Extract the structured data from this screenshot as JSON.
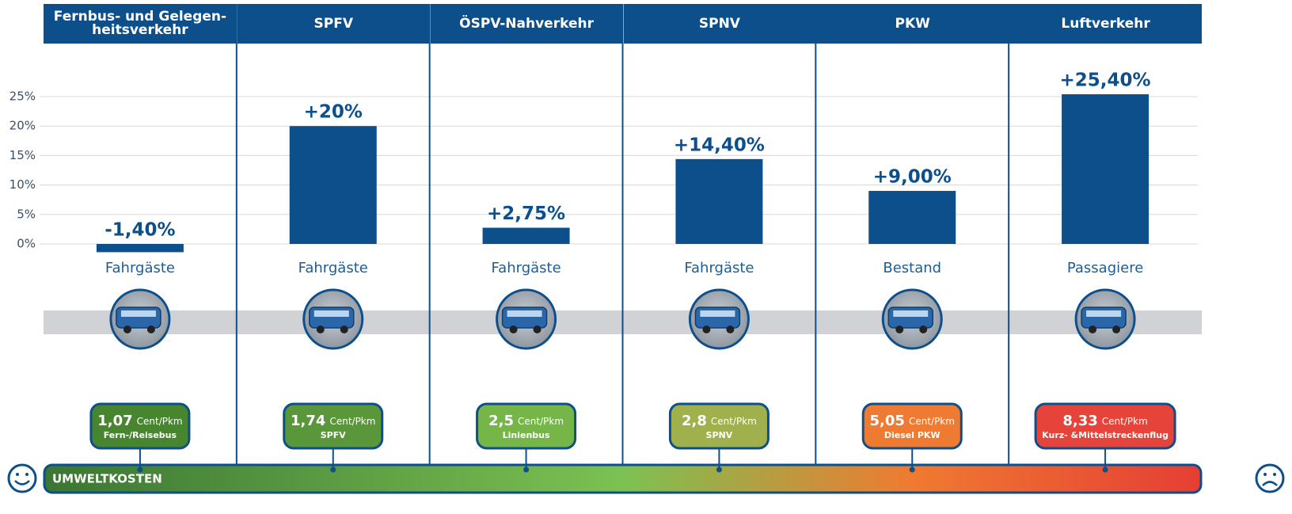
{
  "chart_data": {
    "type": "bar",
    "categories": [
      "Fernbus- und Gelegen-\nheitsverkehr",
      "SPFV",
      "ÖSPV-Nahverkehr",
      "SPNV",
      "PKW",
      "Luftverkehr"
    ],
    "values": [
      -1.4,
      20,
      2.75,
      14.4,
      9,
      25.4
    ],
    "value_labels": [
      "-1,40%",
      "+20%",
      "+2,75%",
      "+14,40%",
      "+9,00%",
      "+25,40%"
    ],
    "measures": [
      "Fahrgäste",
      "Fahrgäste",
      "Fahrgäste",
      "Fahrgäste",
      "Bestand",
      "Passagiere"
    ],
    "color": "#0d4f8b",
    "ylim": [
      0,
      25
    ],
    "yticks": [
      {
        "value": 0,
        "label": "0%"
      },
      {
        "value": 5,
        "label": "5%"
      },
      {
        "value": 10,
        "label": "10%"
      },
      {
        "value": 15,
        "label": "15%"
      },
      {
        "value": 20,
        "label": "20%"
      },
      {
        "value": 25,
        "label": "25%"
      }
    ],
    "grid": true,
    "cost_badges": [
      {
        "amount": "1,07",
        "unit": "Cent/Pkm",
        "mode": "Fern-/Reisebus",
        "color": "#47862f"
      },
      {
        "amount": "1,74",
        "unit": "Cent/Pkm",
        "mode": "SPFV",
        "color": "#5a963a"
      },
      {
        "amount": "2,5",
        "unit": "Cent/Pkm",
        "mode": "Linienbus",
        "color": "#76b649"
      },
      {
        "amount": "2,8",
        "unit": "Cent/Pkm",
        "mode": "SPNV",
        "color": "#9fb04c"
      },
      {
        "amount": "5,05",
        "unit": "Cent/Pkm",
        "mode": "Diesel PKW",
        "color": "#ef7a32"
      },
      {
        "amount": "8,33",
        "unit": "Cent/Pkm",
        "mode": "Kurz- &Mittelstreckenflug",
        "color": "#e6443a"
      }
    ],
    "cost_axis_label": "UMWELTKOSTEN"
  }
}
